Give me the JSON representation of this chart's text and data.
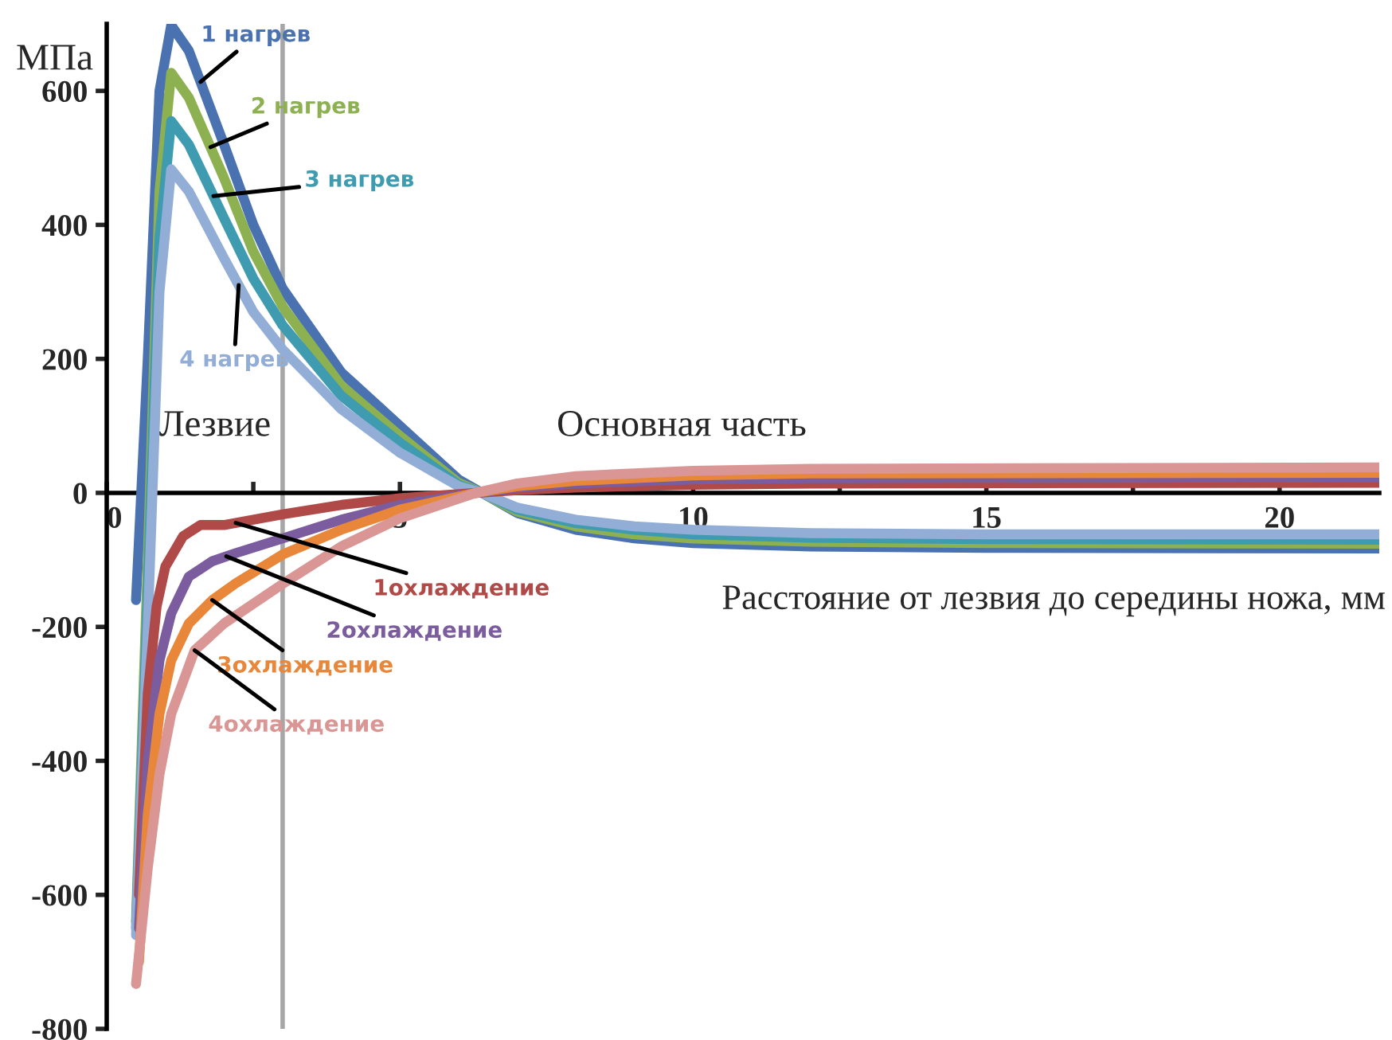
{
  "chart_data": {
    "type": "line",
    "ylabel": "МПа",
    "xlabel": "Расстояние от лезвия до середины ножа, мм",
    "xlim": [
      0,
      21.7
    ],
    "ylim": [
      -800,
      700
    ],
    "xticks": [
      0,
      {
        "value": 2.5,
        "label": null
      },
      5,
      {
        "value": 7.5,
        "label": null
      },
      10,
      {
        "value": 12.5,
        "label": null
      },
      15,
      {
        "value": 17.5,
        "label": null
      },
      20
    ],
    "yticks": [
      -800,
      -600,
      -400,
      -200,
      0,
      200,
      400,
      600
    ],
    "grid": false,
    "legend": false,
    "marker": "none",
    "line_style": "solid",
    "ref_lines": [
      {
        "axis": "x",
        "value": 3,
        "color": "#a6a6a6"
      }
    ],
    "annotations": [
      "Лезвие",
      "Основная часть"
    ],
    "series": [
      {
        "name": "1 нагрев",
        "color": "#4a72b0",
        "x": [
          0.5,
          0.7,
          0.9,
          1.1,
          1.4,
          2,
          2.5,
          3,
          4,
          5,
          6,
          6.4,
          7,
          8,
          9,
          10,
          12,
          15,
          21.7
        ],
        "values": [
          -160,
          200,
          600,
          698,
          660,
          520,
          400,
          305,
          180,
          100,
          20,
          0,
          -30,
          -55,
          -68,
          -75,
          -80,
          -82,
          -83
        ]
      },
      {
        "name": "2 нагрев",
        "color": "#8db150",
        "x": [
          0.5,
          0.7,
          0.9,
          1.1,
          1.4,
          2,
          2.5,
          3,
          4,
          5,
          6,
          6.4,
          7,
          8,
          9,
          10,
          12,
          15,
          21.7
        ],
        "values": [
          -640,
          -100,
          450,
          627,
          590,
          470,
          360,
          278,
          160,
          85,
          15,
          0,
          -28,
          -50,
          -62,
          -68,
          -73,
          -75,
          -76
        ]
      },
      {
        "name": "3 нагрев",
        "color": "#3f9bb0",
        "x": [
          0.5,
          0.7,
          0.9,
          1.1,
          1.4,
          2,
          2.5,
          3,
          4,
          5,
          6,
          6.4,
          7,
          8,
          9,
          10,
          12,
          15,
          21.7
        ],
        "values": [
          -650,
          -150,
          380,
          555,
          520,
          410,
          320,
          250,
          145,
          75,
          12,
          0,
          -25,
          -45,
          -55,
          -62,
          -67,
          -69,
          -70
        ]
      },
      {
        "name": "4 нагрев",
        "color": "#93aed6",
        "x": [
          0.5,
          0.7,
          0.9,
          1.1,
          1.4,
          2,
          2.5,
          3,
          4,
          5,
          6,
          6.4,
          7,
          8,
          9,
          10,
          12,
          15,
          21.7
        ],
        "values": [
          -660,
          -200,
          300,
          483,
          450,
          350,
          270,
          214,
          125,
          60,
          10,
          0,
          -22,
          -40,
          -50,
          -55,
          -60,
          -62,
          -62
        ]
      },
      {
        "name": "1охлаждение",
        "color": "#b04a48",
        "x": [
          0.55,
          0.7,
          0.85,
          1,
          1.3,
          1.6,
          2,
          3,
          4,
          5,
          6.3,
          7,
          8,
          10,
          12,
          21.7
        ],
        "values": [
          -600,
          -300,
          -170,
          -110,
          -65,
          -48,
          -48,
          -32,
          -18,
          -8,
          0,
          4,
          8,
          12,
          14,
          15
        ]
      },
      {
        "name": "2охлаждение",
        "color": "#7b5c9e",
        "x": [
          0.55,
          0.7,
          0.9,
          1.1,
          1.4,
          1.8,
          2.2,
          3,
          4,
          5,
          6.3,
          7,
          8,
          10,
          12,
          21.7
        ],
        "values": [
          -650,
          -400,
          -250,
          -180,
          -125,
          -102,
          -90,
          -68,
          -40,
          -18,
          0,
          8,
          14,
          20,
          22,
          23
        ]
      },
      {
        "name": "3охлаждение",
        "color": "#e8873a",
        "x": [
          0.55,
          0.7,
          0.9,
          1.1,
          1.4,
          1.8,
          2.2,
          3,
          4,
          5,
          6.3,
          7,
          8,
          10,
          12,
          21.7
        ],
        "values": [
          -700,
          -480,
          -330,
          -250,
          -195,
          -160,
          -135,
          -92,
          -55,
          -25,
          0,
          10,
          18,
          26,
          29,
          30
        ]
      },
      {
        "name": "4охлаждение",
        "color": "#d99694",
        "x": [
          0.5,
          0.7,
          0.9,
          1.1,
          1.5,
          2,
          3,
          4,
          5,
          6.3,
          7,
          8,
          10,
          12,
          21.7
        ],
        "values": [
          -733,
          -560,
          -420,
          -330,
          -235,
          -195,
          -136,
          -80,
          -38,
          0,
          14,
          25,
          33,
          36,
          38
        ]
      }
    ]
  }
}
